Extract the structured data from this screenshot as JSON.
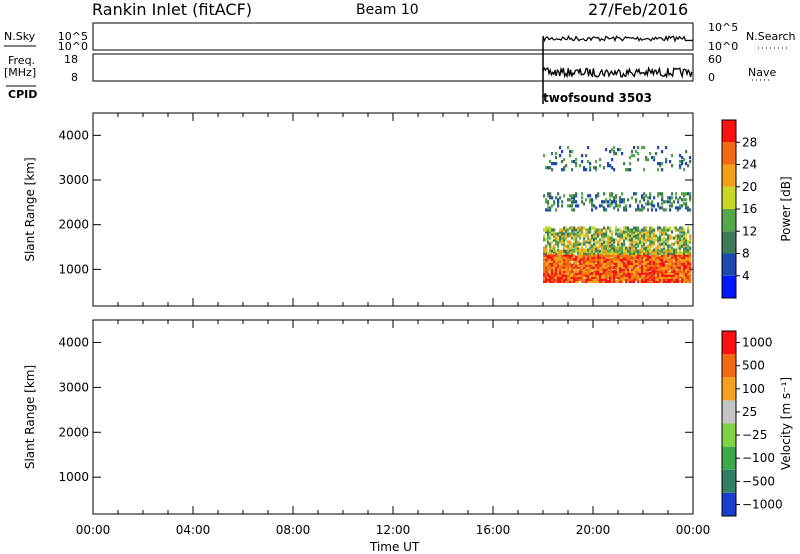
{
  "header": {
    "station": "Rankin Inlet (fitACF)",
    "beam": "Beam 10",
    "date": "27/Feb/2016"
  },
  "strip_labels": {
    "nsky": "N.Sky",
    "freq_top": "Freq.",
    "freq_unit": "[MHz]",
    "cpid": "CPID",
    "nsearch": "N.Search",
    "nave": "Nave",
    "cpid_name": "twofsound 3503",
    "noise_ticks": [
      "10^5",
      "10^0"
    ],
    "freq_ticks": [
      "18",
      "8"
    ],
    "nave_ticks": [
      "60",
      "0"
    ]
  },
  "chart_data": [
    {
      "type": "heatmap",
      "panel": "power",
      "xlabel": "Time UT",
      "ylabel": "Slant Range [km]",
      "x_ticks": [
        "00:00",
        "04:00",
        "08:00",
        "12:00",
        "16:00",
        "20:00",
        "00:00"
      ],
      "x_range_hours": [
        0,
        24
      ],
      "y_ticks": [
        1000,
        2000,
        3000,
        4000
      ],
      "y_range_km": [
        180,
        4500
      ],
      "data_start_hour": 18,
      "colorbar_label": "Power [dB]",
      "colorbar_ticks": [
        4,
        8,
        12,
        16,
        20,
        24,
        28
      ],
      "colorbar_range": [
        0,
        32
      ],
      "colors": [
        "#0018ff",
        "#1c49b0",
        "#3f7a5a",
        "#56a64a",
        "#c8d629",
        "#f4a01a",
        "#f06a10",
        "#ff1010"
      ]
    },
    {
      "type": "heatmap",
      "panel": "velocity",
      "xlabel": "Time UT",
      "ylabel": "Slant Range [km]",
      "x_ticks": [
        "00:00",
        "04:00",
        "08:00",
        "12:00",
        "16:00",
        "20:00",
        "00:00"
      ],
      "y_ticks": [
        1000,
        2000,
        3000,
        4000
      ],
      "y_range_km": [
        180,
        4500
      ],
      "colorbar_label": "Velocity [m s⁻¹]",
      "colorbar_ticks": [
        "1000",
        "500",
        "100",
        "25",
        "−25",
        "−100",
        "−500",
        "−1000"
      ],
      "colors": [
        "#1a3dd0",
        "#2f7f66",
        "#3da84a",
        "#7ed442",
        "#c4c4c4",
        "#f6a020",
        "#f06a10",
        "#ff1010"
      ]
    }
  ],
  "axis_titles": {
    "power_ylabel": "Slant Range [km]",
    "vel_ylabel": "Slant Range [km]",
    "xlabel": "Time UT",
    "power_cb": "Power [dB]",
    "vel_cb": "Velocity [m s⁻¹]"
  }
}
